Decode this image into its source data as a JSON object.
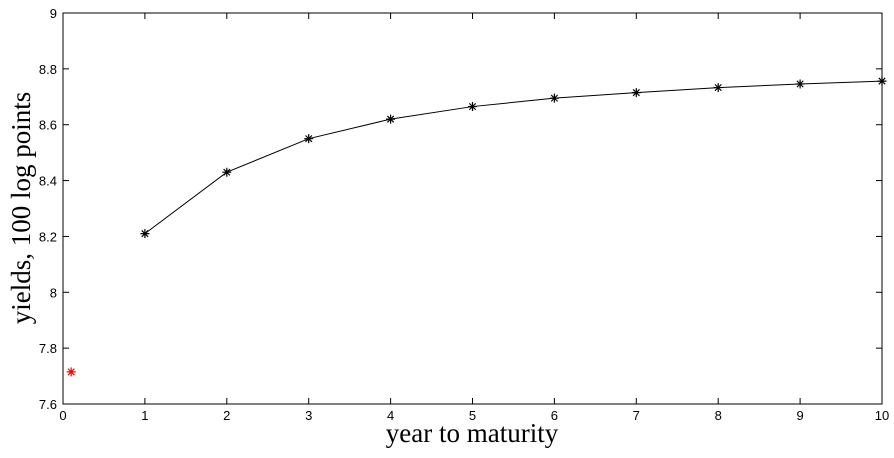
{
  "chart_data": {
    "type": "line",
    "xlabel": "year to maturity",
    "ylabel": "yields, 100 log points",
    "xlim": [
      0,
      10
    ],
    "xticks": [
      0,
      1,
      2,
      3,
      4,
      5,
      6,
      7,
      8,
      9,
      10
    ],
    "ylim": [
      7.6,
      9
    ],
    "yticks": [
      7.6,
      7.8,
      8,
      8.2,
      8.4,
      8.6,
      8.8,
      9
    ],
    "series": [
      {
        "color": "#000000",
        "line": true,
        "marker": "*",
        "x": [
          1,
          2,
          3,
          4,
          5,
          6,
          7,
          8,
          9,
          10
        ],
        "values": [
          8.21,
          8.43,
          8.55,
          8.62,
          8.665,
          8.695,
          8.715,
          8.733,
          8.746,
          8.756
        ]
      },
      {
        "color": "#ff0000",
        "line": false,
        "marker": "*",
        "x": [
          0.1
        ],
        "values": [
          7.715
        ]
      }
    ]
  }
}
